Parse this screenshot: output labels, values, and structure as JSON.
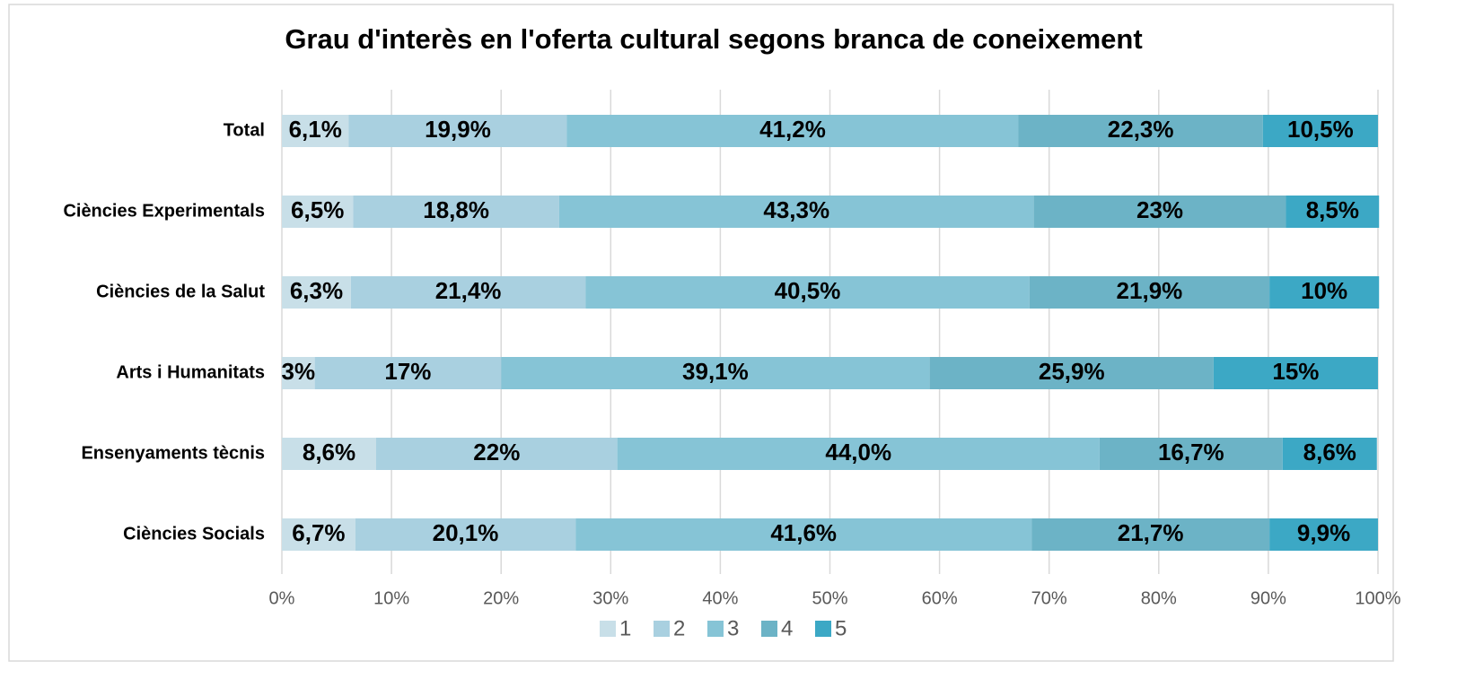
{
  "chart_data": {
    "type": "stacked_barh",
    "title": "Grau d'interès en l'oferta cultural segons branca de coneixement",
    "categories": [
      "Total",
      "Ciències Experimentals",
      "Ciències de la Salut",
      "Arts i Humanitats",
      "Ensenyaments tècnis",
      "Ciències Socials"
    ],
    "series": [
      {
        "name": "1",
        "color": "#c8dfe8",
        "values": [
          6.1,
          6.5,
          6.3,
          3,
          8.6,
          6.7
        ],
        "value_labels": [
          "6,1%",
          "6,5%",
          "6,3%",
          "3%",
          "8,6%",
          "6,7%"
        ]
      },
      {
        "name": "2",
        "color": "#a9d0e0",
        "values": [
          19.9,
          18.8,
          21.4,
          17,
          22,
          20.1
        ],
        "value_labels": [
          "19,9%",
          "18,8%",
          "21,4%",
          "17%",
          "22%",
          "20,1%"
        ]
      },
      {
        "name": "3",
        "color": "#86c4d6",
        "values": [
          41.2,
          43.3,
          40.5,
          39.1,
          44.0,
          41.6
        ],
        "value_labels": [
          "41,2%",
          "43,3%",
          "40,5%",
          "39,1%",
          "44,0%",
          "41,6%"
        ]
      },
      {
        "name": "4",
        "color": "#6cb3c6",
        "values": [
          22.3,
          23,
          21.9,
          25.9,
          16.7,
          21.7
        ],
        "value_labels": [
          "22,3%",
          "23%",
          "21,9%",
          "25,9%",
          "16,7%",
          "21,7%"
        ]
      },
      {
        "name": "5",
        "color": "#3ca8c5",
        "values": [
          10.5,
          8.5,
          10,
          15,
          8.6,
          9.9
        ],
        "value_labels": [
          "10,5%",
          "8,5%",
          "10%",
          "15%",
          "8,6%",
          "9,9%"
        ]
      }
    ],
    "xlim": [
      0,
      100
    ],
    "xticks": [
      {
        "value": 0,
        "label": "0%"
      },
      {
        "value": 10,
        "label": "10%"
      },
      {
        "value": 20,
        "label": "20%"
      },
      {
        "value": 30,
        "label": "30%"
      },
      {
        "value": 40,
        "label": "40%"
      },
      {
        "value": 50,
        "label": "50%"
      },
      {
        "value": 60,
        "label": "60%"
      },
      {
        "value": 70,
        "label": "70%"
      },
      {
        "value": 80,
        "label": "80%"
      },
      {
        "value": 90,
        "label": "90%"
      },
      {
        "value": 100,
        "label": "100%"
      }
    ],
    "grid": true,
    "legend": "bottom"
  }
}
